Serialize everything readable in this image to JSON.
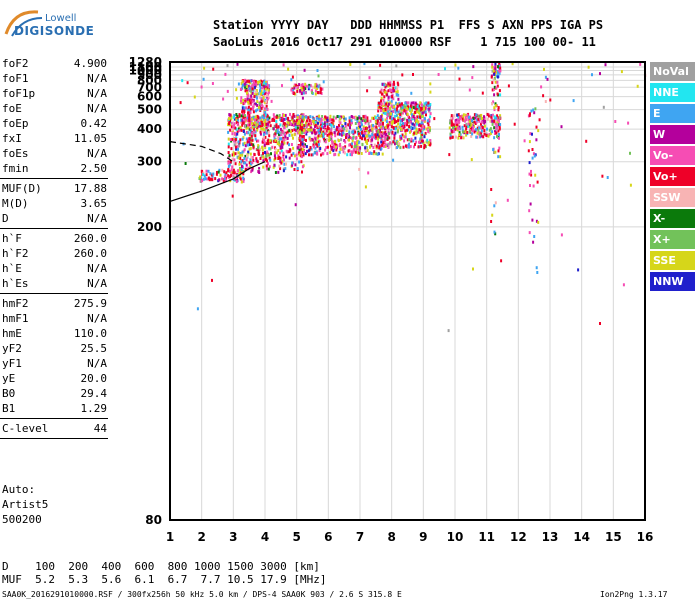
{
  "logo": {
    "line1": "Lowell",
    "line2": "DIGISONDE"
  },
  "header": {
    "line1": "Station YYYY DAY   DDD HHMMSS P1  FFS S AXN PPS IGA PS",
    "line2": "SaoLuis 2016 Oct17 291 010000 RSF    1 715 100 00- 11"
  },
  "params": [
    [
      {
        "name": "foF2",
        "value": "4.900"
      },
      {
        "name": "foF1",
        "value": "N/A"
      },
      {
        "name": "foF1p",
        "value": "N/A"
      },
      {
        "name": "foE",
        "value": "N/A"
      },
      {
        "name": "foEp",
        "value": "0.42"
      },
      {
        "name": "fxI",
        "value": "11.05"
      },
      {
        "name": "foEs",
        "value": "N/A"
      },
      {
        "name": "fmin",
        "value": "2.50"
      }
    ],
    [
      {
        "name": "MUF(D)",
        "value": "17.88"
      },
      {
        "name": "M(D)",
        "value": "3.65"
      },
      {
        "name": "D",
        "value": "N/A"
      }
    ],
    [
      {
        "name": "h`F",
        "value": "260.0"
      },
      {
        "name": "h`F2",
        "value": "260.0"
      },
      {
        "name": "h`E",
        "value": "N/A"
      },
      {
        "name": "h`Es",
        "value": "N/A"
      }
    ],
    [
      {
        "name": "hmF2",
        "value": "275.9"
      },
      {
        "name": "hmF1",
        "value": "N/A"
      },
      {
        "name": "hmE",
        "value": "110.0"
      },
      {
        "name": "yF2",
        "value": "25.5"
      },
      {
        "name": "yF1",
        "value": "N/A"
      },
      {
        "name": "yE",
        "value": "20.0"
      },
      {
        "name": "B0",
        "value": "29.4"
      },
      {
        "name": "B1",
        "value": "1.29"
      }
    ],
    [
      {
        "name": "C-level",
        "value": "44"
      }
    ]
  ],
  "auto": {
    "line1": "Auto:",
    "line2": "Artist5",
    "line3": "500200"
  },
  "legend": [
    {
      "label": "NoVal",
      "color": "#a0a0a0"
    },
    {
      "label": "NNE",
      "color": "#22e6f0"
    },
    {
      "label": "E",
      "color": "#3fa5f2"
    },
    {
      "label": "W",
      "color": "#b4009c"
    },
    {
      "label": "Vo-",
      "color": "#f64db4"
    },
    {
      "label": "Vo+",
      "color": "#ee0028"
    },
    {
      "label": "SSW",
      "color": "#f8b4b4"
    },
    {
      "label": "X-",
      "color": "#0b7a0b"
    },
    {
      "label": "X+",
      "color": "#72c25a"
    },
    {
      "label": "SSE",
      "color": "#d6d61a"
    },
    {
      "label": "NNW",
      "color": "#2020cc"
    }
  ],
  "footer": {
    "d_line": "D    100  200  400  600  800 1000 1500 3000 [km]",
    "muf_line": "MUF  5.2  5.3  5.6  6.1  6.7  7.7 10.5 17.9 [MHz]",
    "source": "SAA0K_2016291010000.RSF / 300fx256h 50 kHz 5.0 km / DPS-4 SAA0K 903 / 2.6 S 315.8 E",
    "version": "Ion2Png 1.3.17"
  },
  "chart_data": {
    "type": "scatter",
    "x_ticks": [
      "1",
      "2",
      "3",
      "4",
      "5",
      "6",
      "7",
      "8",
      "9",
      "10",
      "11",
      "12",
      "13",
      "14",
      "15",
      "16"
    ],
    "y_ticks": [
      "80",
      "200",
      "300",
      "400",
      "500",
      "600",
      "700",
      "800",
      "900",
      "1000",
      "1100",
      "1280"
    ],
    "xlim": [
      1,
      16
    ],
    "ylim": [
      80,
      1280
    ],
    "y_scale": "reciprocal",
    "grid": true,
    "clusters": [
      {
        "xmin": 1.9,
        "xmax": 3.3,
        "ymin": 262,
        "ymax": 285,
        "n": 90
      },
      {
        "xmin": 2.8,
        "xmax": 5.2,
        "ymin": 280,
        "ymax": 480,
        "n": 700
      },
      {
        "xmin": 3.2,
        "xmax": 4.1,
        "ymin": 420,
        "ymax": 820,
        "n": 260
      },
      {
        "xmin": 4.8,
        "xmax": 5.8,
        "ymin": 640,
        "ymax": 760,
        "n": 70
      },
      {
        "xmin": 5.0,
        "xmax": 7.7,
        "ymin": 320,
        "ymax": 470,
        "n": 650
      },
      {
        "xmin": 7.5,
        "xmax": 9.2,
        "ymin": 340,
        "ymax": 560,
        "n": 560
      },
      {
        "xmin": 7.6,
        "xmax": 8.2,
        "ymin": 560,
        "ymax": 800,
        "n": 60
      },
      {
        "xmin": 9.8,
        "xmax": 11.4,
        "ymin": 370,
        "ymax": 480,
        "n": 250
      },
      {
        "xmin": 11.1,
        "xmax": 11.4,
        "ymin": 180,
        "ymax": 1280,
        "n": 90
      },
      {
        "xmin": 12.3,
        "xmax": 12.6,
        "ymin": 150,
        "ymax": 520,
        "n": 35
      },
      {
        "xmin": 1.0,
        "xmax": 16.0,
        "ymin": 120,
        "ymax": 1280,
        "n": 120
      }
    ],
    "model_curves": [
      {
        "style": "solid",
        "points": [
          [
            1.0,
            230
          ],
          [
            2.0,
            245
          ],
          [
            3.0,
            265
          ],
          [
            3.5,
            285
          ],
          [
            4.0,
            300
          ]
        ]
      },
      {
        "style": "dashed",
        "points": [
          [
            1.0,
            355
          ],
          [
            2.0,
            340
          ],
          [
            2.6,
            320
          ],
          [
            3.0,
            300
          ]
        ]
      }
    ]
  }
}
